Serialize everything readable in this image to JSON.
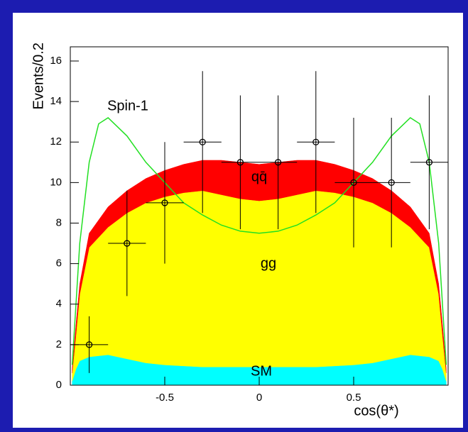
{
  "chart_data": {
    "type": "stacked_area",
    "x": [
      -0.99,
      -0.97,
      -0.95,
      -0.9,
      -0.8,
      -0.7,
      -0.6,
      -0.5,
      -0.4,
      -0.3,
      -0.2,
      -0.1,
      0,
      0.1,
      0.2,
      0.3,
      0.4,
      0.5,
      0.6,
      0.7,
      0.8,
      0.9,
      0.95,
      0.97,
      0.99
    ],
    "series": [
      {
        "name": "SM",
        "color": "#00ffff",
        "values": [
          0.2,
          0.8,
          1.2,
          1.4,
          1.5,
          1.3,
          1.1,
          1.0,
          0.95,
          0.9,
          0.9,
          0.9,
          0.9,
          0.9,
          0.9,
          0.9,
          0.95,
          1.0,
          1.1,
          1.3,
          1.5,
          1.4,
          1.2,
          0.8,
          0.2
        ]
      },
      {
        "name": "gg",
        "color": "#ffff00",
        "values": [
          0.4,
          1.7,
          3.3,
          5.4,
          6.3,
          7.2,
          7.9,
          8.3,
          8.55,
          8.7,
          8.5,
          8.3,
          8.2,
          8.3,
          8.5,
          8.7,
          8.55,
          8.3,
          7.9,
          7.2,
          6.3,
          5.4,
          3.3,
          1.7,
          0.4
        ]
      },
      {
        "name": "qq̄",
        "color": "#ff0000",
        "values": [
          0.2,
          0.5,
          0.5,
          0.7,
          1.0,
          1.1,
          1.2,
          1.3,
          1.4,
          1.5,
          1.7,
          1.8,
          1.8,
          1.8,
          1.7,
          1.5,
          1.4,
          1.3,
          1.2,
          1.1,
          1.0,
          0.7,
          0.5,
          0.5,
          0.2
        ]
      }
    ],
    "lines": [
      {
        "name": "Spin-1",
        "color": "#22e022",
        "x": [
          -0.99,
          -0.97,
          -0.95,
          -0.9,
          -0.85,
          -0.8,
          -0.7,
          -0.6,
          -0.5,
          -0.4,
          -0.3,
          -0.2,
          -0.1,
          0,
          0.1,
          0.2,
          0.3,
          0.4,
          0.5,
          0.6,
          0.7,
          0.8,
          0.85,
          0.9,
          0.95,
          0.97,
          0.99
        ],
        "values": [
          1,
          4,
          7,
          11,
          12.9,
          13.2,
          12.3,
          11,
          10,
          9,
          8.4,
          7.9,
          7.6,
          7.5,
          7.6,
          7.9,
          8.4,
          9,
          10,
          11,
          12.3,
          13.2,
          12.9,
          11,
          7,
          4,
          1
        ]
      }
    ],
    "points": {
      "x": [
        -0.9,
        -0.7,
        -0.5,
        -0.3,
        -0.1,
        0.1,
        0.3,
        0.5,
        0.7,
        0.9
      ],
      "values": [
        2,
        7,
        9,
        12,
        11,
        11,
        12,
        10,
        10,
        11
      ],
      "yerr": [
        1.4,
        2.6,
        3,
        3.5,
        3.3,
        3.3,
        3.5,
        3.2,
        3.2,
        3.3
      ],
      "xerr": [
        0.1,
        0.1,
        0.1,
        0.1,
        0.1,
        0.1,
        0.1,
        0.1,
        0.1,
        0.1
      ]
    },
    "x_label": "cos(θ*)",
    "y_label": "Events/0.2",
    "xlim": [
      -1,
      1
    ],
    "xticks": [
      -0.5,
      0,
      0.5
    ],
    "ylim": [
      0,
      16.7
    ],
    "yticks": [
      0,
      2,
      4,
      6,
      8,
      10,
      12,
      14,
      16
    ]
  }
}
